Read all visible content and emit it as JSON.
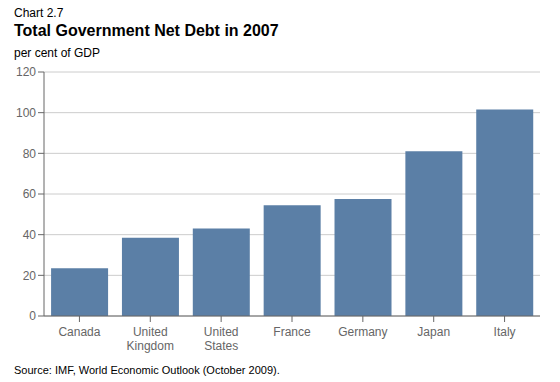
{
  "chart_data": {
    "type": "bar",
    "title": "Total Government Net Debt in 2007",
    "ylabel": "per cent of GDP",
    "annotations": [
      "Chart 2.7",
      "Source: IMF, World Economic Outlook (October 2009)."
    ],
    "categories": [
      "Canada",
      "United\nKingdom",
      "United\nStates",
      "France",
      "Germany",
      "Japan",
      "Italy"
    ],
    "values": [
      23.5,
      38.5,
      43.0,
      54.5,
      57.5,
      81.0,
      101.5
    ],
    "color": "#5b7fa6",
    "ylim": [
      0,
      120
    ],
    "yticks": [
      0,
      20,
      40,
      60,
      80,
      100,
      120
    ],
    "grid": true
  }
}
